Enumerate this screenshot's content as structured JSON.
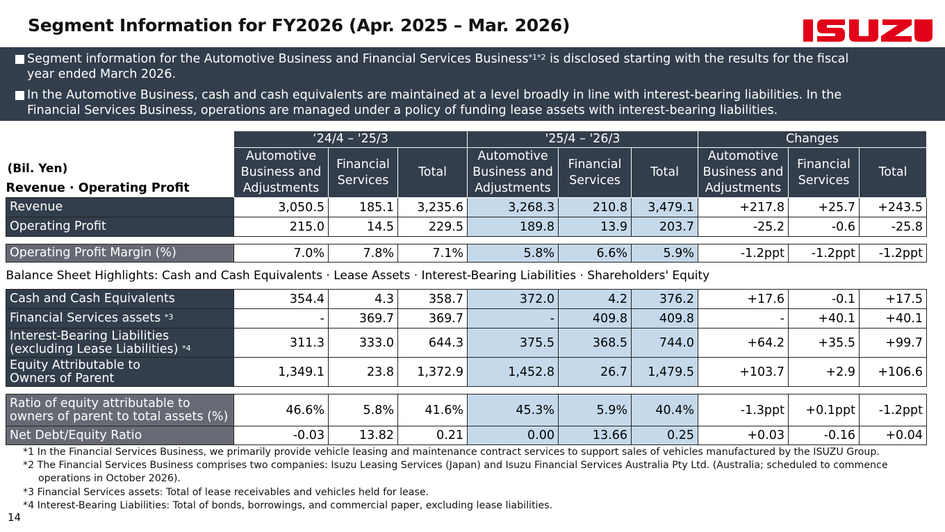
{
  "title": "Segment Information for FY2026 (Apr. 2025 – Mar. 2026)",
  "logo_text": "ISUZU",
  "brand_color": "#e2001a",
  "banner": {
    "b1_pre": "Segment information for the Automotive Business and Financial Services Business",
    "b1_sup": "*1*2",
    "b1_post": " is disclosed starting with the results for the fiscal",
    "b1_line2": "year ended March 2026.",
    "b2_line1": "In the Automotive Business, cash and cash equivalents are maintained at a level broadly in line with interest-bearing liabilities. In the",
    "b2_line2": "Financial Services Business, operations are managed under a policy of funding lease assets with interest-bearing liabilities."
  },
  "table": {
    "unit": "(Bil. Yen)",
    "section1": "Revenue · Operating Profit",
    "periods": [
      "‘24/4 – '25/3",
      "'25/4 – '26/3",
      "Changes"
    ],
    "col_auto": "Automotive Business and Adjustments",
    "col_fin": "Financial Services",
    "col_total": "Total",
    "rows1": [
      {
        "label": "Revenue",
        "values": [
          "3,050.5",
          "185.1",
          "3,235.6",
          "3,268.3",
          "210.8",
          "3,479.1",
          "+217.8",
          "+25.7",
          "+243.5"
        ]
      },
      {
        "label": "Operating Profit",
        "values": [
          "215.0",
          "14.5",
          "229.5",
          "189.8",
          "13.9",
          "203.7",
          "-25.2",
          "-0.6",
          "-25.8"
        ]
      }
    ],
    "margin": {
      "label": "Operating Profit Margin (%)",
      "values": [
        "7.0%",
        "7.8%",
        "7.1%",
        "5.8%",
        "6.6%",
        "5.9%",
        "-1.2ppt",
        "-1.2ppt",
        "-1.2ppt"
      ]
    },
    "section2": "Balance Sheet Highlights: Cash and Cash Equivalents · Lease Assets · Interest-Bearing Liabilities · Shareholders' Equity",
    "rows2": [
      {
        "label": "Cash and Cash Equivalents",
        "label2": "",
        "sup": "",
        "values": [
          "354.4",
          "4.3",
          "358.7",
          "372.0",
          "4.2",
          "376.2",
          "+17.6",
          "-0.1",
          "+17.5"
        ]
      },
      {
        "label": "Financial Services assets",
        "label2": "",
        "sup": "*3",
        "values": [
          "-",
          "369.7",
          "369.7",
          "-",
          "409.8",
          "409.8",
          "-",
          "+40.1",
          "+40.1"
        ]
      },
      {
        "label": "Interest-Bearing Liabilities",
        "label2": "(excluding Lease Liabilities)",
        "sup": "*4",
        "values": [
          "311.3",
          "333.0",
          "644.3",
          "375.5",
          "368.5",
          "744.0",
          "+64.2",
          "+35.5",
          "+99.7"
        ]
      },
      {
        "label": "Equity Attributable to",
        "label2": "Owners of Parent",
        "sup": "",
        "values": [
          "1,349.1",
          "23.8",
          "1,372.9",
          "1,452.8",
          "26.7",
          "1,479.5",
          "+103.7",
          "+2.9",
          "+106.6"
        ]
      }
    ],
    "rows3": [
      {
        "label": "Ratio of equity attributable to",
        "label2": "owners of parent to total assets (%)",
        "values": [
          "46.6%",
          "5.8%",
          "41.6%",
          "45.3%",
          "5.9%",
          "40.4%",
          "-1.3ppt",
          "+0.1ppt",
          "-1.2ppt"
        ]
      },
      {
        "label": "Net Debt/Equity Ratio",
        "label2": "",
        "values": [
          "-0.03",
          "13.82",
          "0.21",
          "0.00",
          "13.66",
          "0.25",
          "+0.03",
          "-0.16",
          "+0.04"
        ]
      }
    ]
  },
  "footnotes": [
    "*1 In the Financial Services Business, we primarily provide vehicle leasing and maintenance contract services to support sales of vehicles manufactured by the ISUZU Group.",
    "*2 The Financial Services Business comprises two companies: Isuzu Leasing Services (Japan) and Isuzu Financial Services Australia Pty Ltd. (Australia; scheduled to commence operations in October 2026).",
    "*3 Financial Services assets: Total of lease receivables and vehicles held for lease.",
    "*4 Interest-Bearing Liabilities: Total of bonds, borrowings, and commercial paper, excluding lease liabilities."
  ],
  "page_number": "14"
}
